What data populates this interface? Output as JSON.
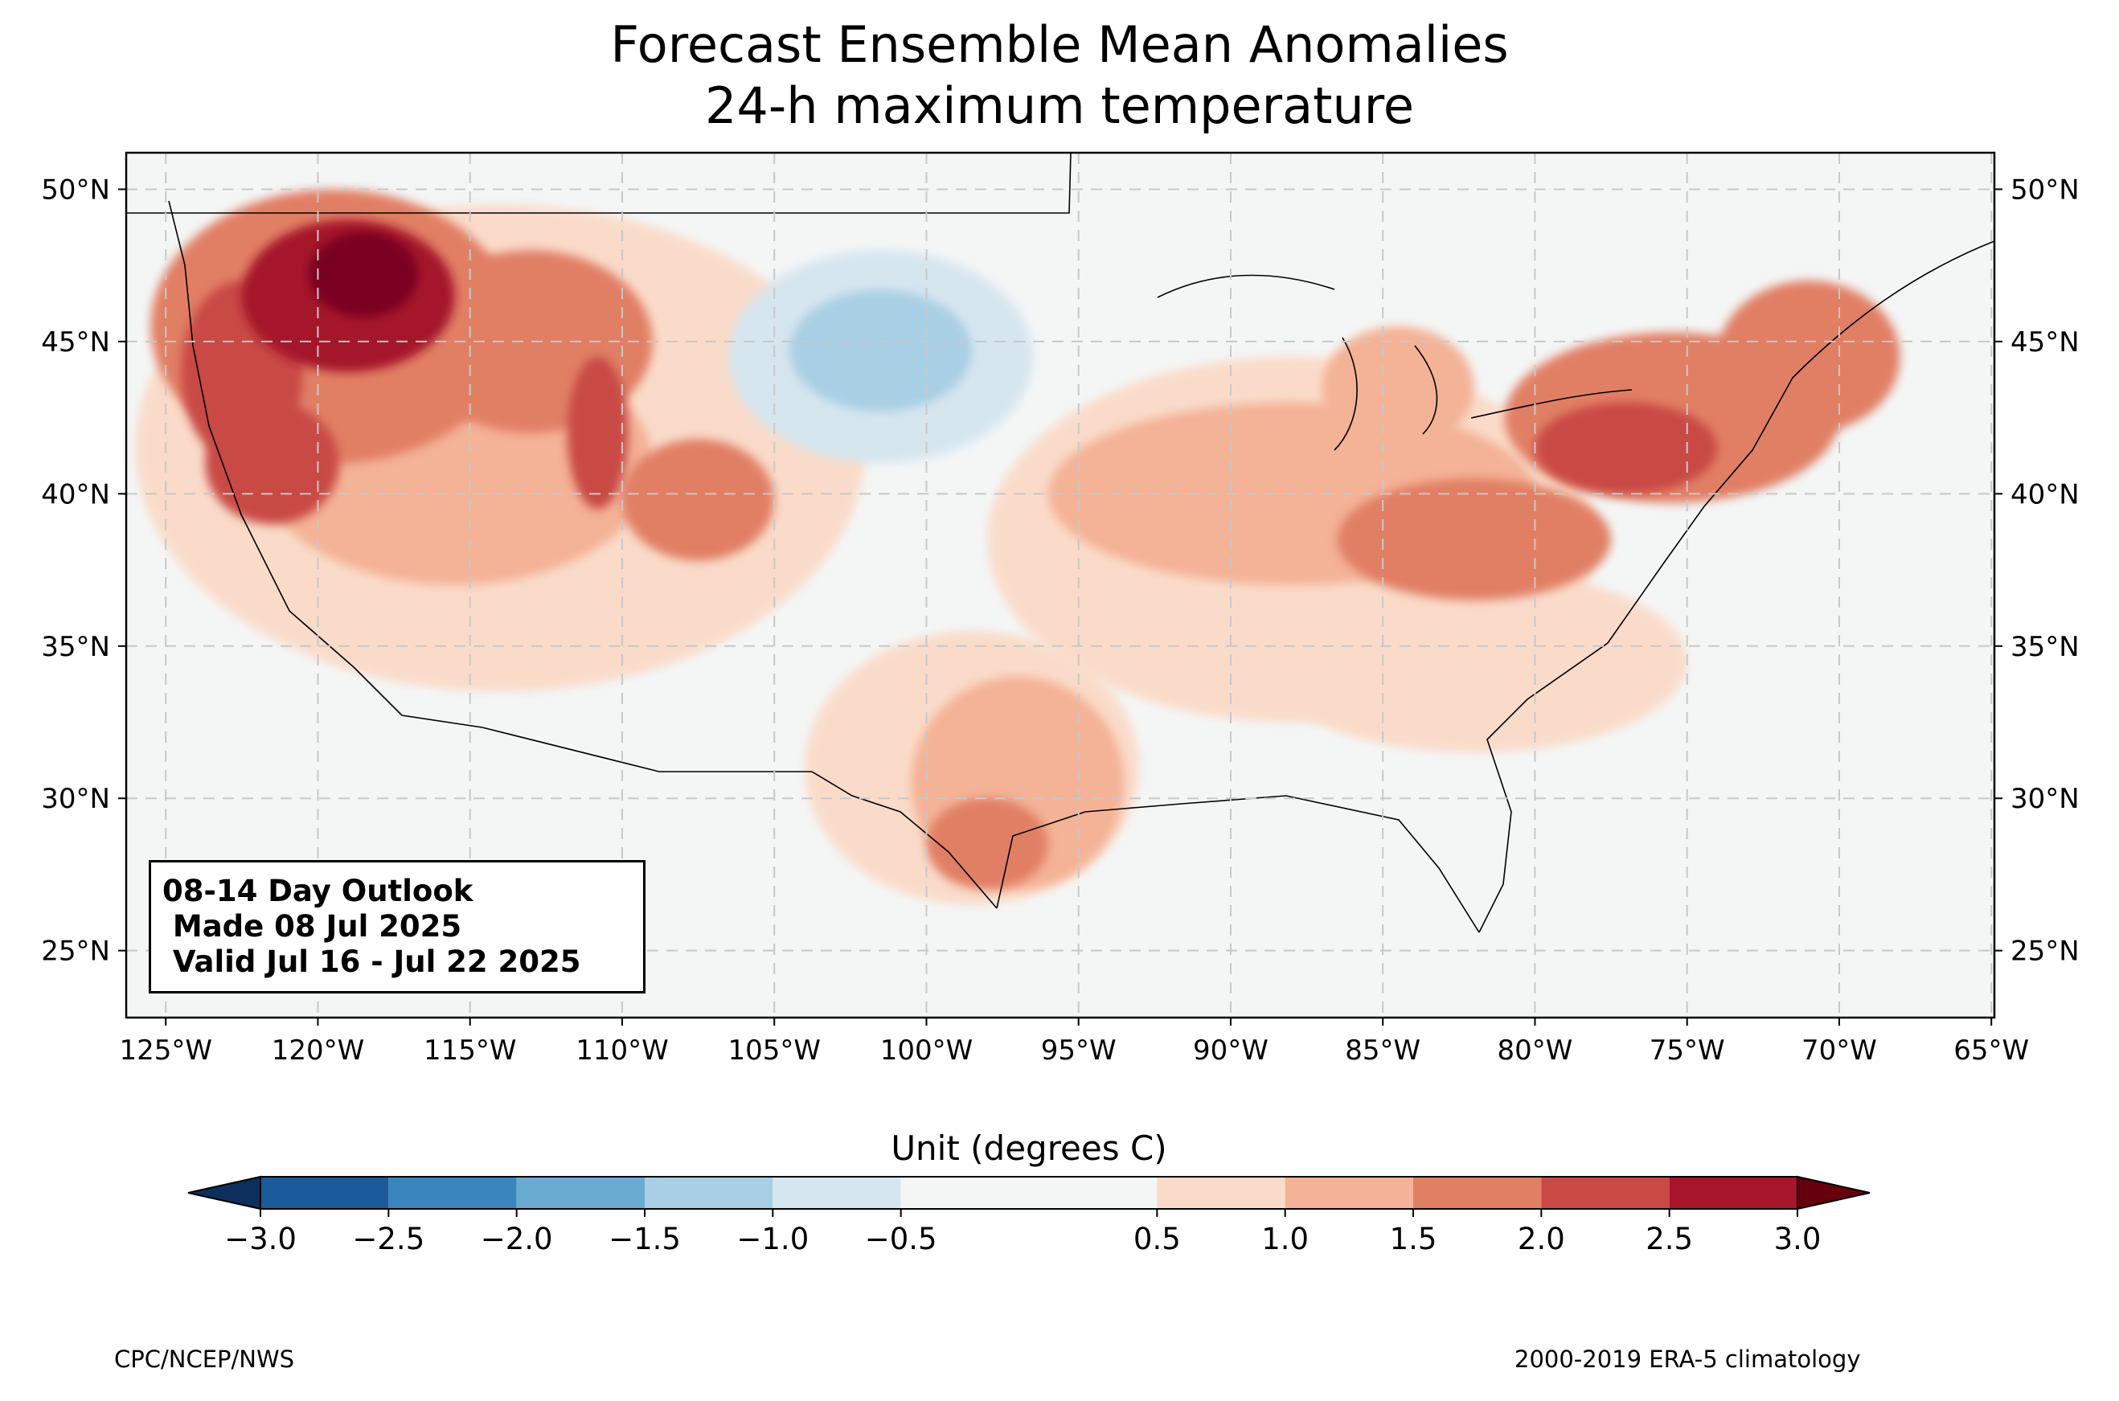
{
  "title": {
    "line1": "Forecast Ensemble Mean Anomalies",
    "line2": "24-h maximum temperature"
  },
  "map": {
    "projection": "PlateCarree",
    "lon_range": [
      -126.3,
      -64.9
    ],
    "lat_range": [
      22.8,
      51.2
    ],
    "gridlines": "dashed",
    "lat_ticks": [
      {
        "value": 50,
        "label": "50°N"
      },
      {
        "value": 45,
        "label": "45°N"
      },
      {
        "value": 40,
        "label": "40°N"
      },
      {
        "value": 35,
        "label": "35°N"
      },
      {
        "value": 30,
        "label": "30°N"
      },
      {
        "value": 25,
        "label": "25°N"
      }
    ],
    "lon_ticks": [
      {
        "value": -125,
        "label": "125°W"
      },
      {
        "value": -120,
        "label": "120°W"
      },
      {
        "value": -115,
        "label": "115°W"
      },
      {
        "value": -110,
        "label": "110°W"
      },
      {
        "value": -105,
        "label": "105°W"
      },
      {
        "value": -100,
        "label": "100°W"
      },
      {
        "value": -95,
        "label": "95°W"
      },
      {
        "value": -90,
        "label": "90°W"
      },
      {
        "value": -85,
        "label": "85°W"
      },
      {
        "value": -80,
        "label": "80°W"
      },
      {
        "value": -75,
        "label": "75°W"
      },
      {
        "value": -70,
        "label": "70°W"
      },
      {
        "value": -65,
        "label": "65°W"
      }
    ],
    "background_color": "#f4f6f6",
    "anomaly_regions": [
      {
        "name": "pacific-northwest-interior",
        "level": 3,
        "center": [
          -119.5,
          45.5
        ],
        "radius": [
          6.0,
          4.5
        ]
      },
      {
        "name": "pacific-northwest-core",
        "level": 5,
        "center": [
          -119.0,
          46.5
        ],
        "radius": [
          3.5,
          2.5
        ]
      },
      {
        "name": "pacific-northwest-peak",
        "level": 6,
        "center": [
          -118.5,
          47.2
        ],
        "radius": [
          1.8,
          1.4
        ]
      },
      {
        "name": "oregon-coast",
        "level": 4,
        "center": [
          -122.5,
          44.0
        ],
        "radius": [
          2.0,
          3.0
        ]
      },
      {
        "name": "northern-california",
        "level": 4,
        "center": [
          -121.5,
          41.0
        ],
        "radius": [
          2.2,
          2.0
        ]
      },
      {
        "name": "west-broad",
        "level": 1,
        "center": [
          -114.0,
          41.5
        ],
        "radius": [
          12.0,
          8.0
        ]
      },
      {
        "name": "great-basin",
        "level": 2,
        "center": [
          -115.5,
          41.0
        ],
        "radius": [
          6.5,
          4.0
        ]
      },
      {
        "name": "idaho-montana",
        "level": 3,
        "center": [
          -113.0,
          45.0
        ],
        "radius": [
          4.0,
          3.0
        ]
      },
      {
        "name": "utah-wyoming-border",
        "level": 4,
        "center": [
          -110.8,
          42.0
        ],
        "radius": [
          1.0,
          2.5
        ]
      },
      {
        "name": "colorado",
        "level": 3,
        "center": [
          -107.5,
          39.8
        ],
        "radius": [
          2.5,
          2.0
        ]
      },
      {
        "name": "texas",
        "level": 2,
        "center": [
          -97.0,
          30.5
        ],
        "radius": [
          3.5,
          3.5
        ]
      },
      {
        "name": "south-texas",
        "level": 3,
        "center": [
          -98.0,
          28.5
        ],
        "radius": [
          2.0,
          1.5
        ]
      },
      {
        "name": "texas-broad",
        "level": 1,
        "center": [
          -98.5,
          31.0
        ],
        "radius": [
          5.5,
          4.5
        ]
      },
      {
        "name": "midwest",
        "level": 2,
        "center": [
          -88.0,
          40.0
        ],
        "radius": [
          8.0,
          3.0
        ]
      },
      {
        "name": "midwest-broad",
        "level": 1,
        "center": [
          -88.0,
          38.5
        ],
        "radius": [
          10.0,
          6.0
        ]
      },
      {
        "name": "michigan",
        "level": 2,
        "center": [
          -84.5,
          43.5
        ],
        "radius": [
          2.5,
          2.0
        ]
      },
      {
        "name": "ohio-valley",
        "level": 3,
        "center": [
          -82.0,
          38.5
        ],
        "radius": [
          4.5,
          2.0
        ]
      },
      {
        "name": "northeast",
        "level": 3,
        "center": [
          -75.5,
          42.5
        ],
        "radius": [
          5.5,
          2.8
        ]
      },
      {
        "name": "new-england",
        "level": 3,
        "center": [
          -71.0,
          44.5
        ],
        "radius": [
          3.0,
          2.5
        ]
      },
      {
        "name": "pennsylvania-core",
        "level": 4,
        "center": [
          -77.0,
          41.5
        ],
        "radius": [
          3.0,
          1.5
        ]
      },
      {
        "name": "southeast-broad",
        "level": 1,
        "center": [
          -82.0,
          34.5
        ],
        "radius": [
          7.0,
          3.0
        ]
      },
      {
        "name": "northern-plains-cool",
        "level": -1,
        "center": [
          -101.5,
          44.5
        ],
        "radius": [
          5.0,
          3.5
        ]
      },
      {
        "name": "northern-plains-cool-core",
        "level": -2,
        "center": [
          -101.5,
          44.7
        ],
        "radius": [
          3.0,
          2.0
        ]
      }
    ],
    "info_box": {
      "line1": "08-14 Day Outlook",
      "line2": " Made 08 Jul 2025",
      "line3": " Valid Jul 16 - Jul 22 2025"
    }
  },
  "colorbar": {
    "title": "Unit (degrees C)",
    "ticks": [
      "−3.0",
      "−2.5",
      "−2.0",
      "−1.5",
      "−1.0",
      "−0.5",
      "0.5",
      "1.0",
      "1.5",
      "2.0",
      "2.5",
      "3.0"
    ],
    "bins": [
      {
        "range": [
          -3.0,
          -2.5
        ],
        "color": "#1b5a9b"
      },
      {
        "range": [
          -2.5,
          -2.0
        ],
        "color": "#3a85bd"
      },
      {
        "range": [
          -2.0,
          -1.5
        ],
        "color": "#6aabd2"
      },
      {
        "range": [
          -1.5,
          -1.0
        ],
        "color": "#a9cfe4"
      },
      {
        "range": [
          -1.0,
          -0.5
        ],
        "color": "#d6e6ef"
      },
      {
        "range": [
          -0.5,
          0.5
        ],
        "color": "#f4f6f6"
      },
      {
        "range": [
          0.5,
          1.0
        ],
        "color": "#fadbc9"
      },
      {
        "range": [
          1.0,
          1.5
        ],
        "color": "#f4b296"
      },
      {
        "range": [
          1.5,
          2.0
        ],
        "color": "#e17f65"
      },
      {
        "range": [
          2.0,
          2.5
        ],
        "color": "#c94a44"
      },
      {
        "range": [
          2.5,
          3.0
        ],
        "color": "#a5152b"
      }
    ],
    "under_color": "#0d2f5c",
    "over_color": "#67000d"
  },
  "credits": {
    "left": "CPC/NCEP/NWS",
    "right": "2000-2019 ERA-5 climatology"
  },
  "level_colors": {
    "-2": "#a9cfe4",
    "-1": "#d6e6ef",
    "1": "#fadbc9",
    "2": "#f4b296",
    "3": "#e17f65",
    "4": "#c94a44",
    "5": "#a5152b",
    "6": "#7a0020"
  }
}
